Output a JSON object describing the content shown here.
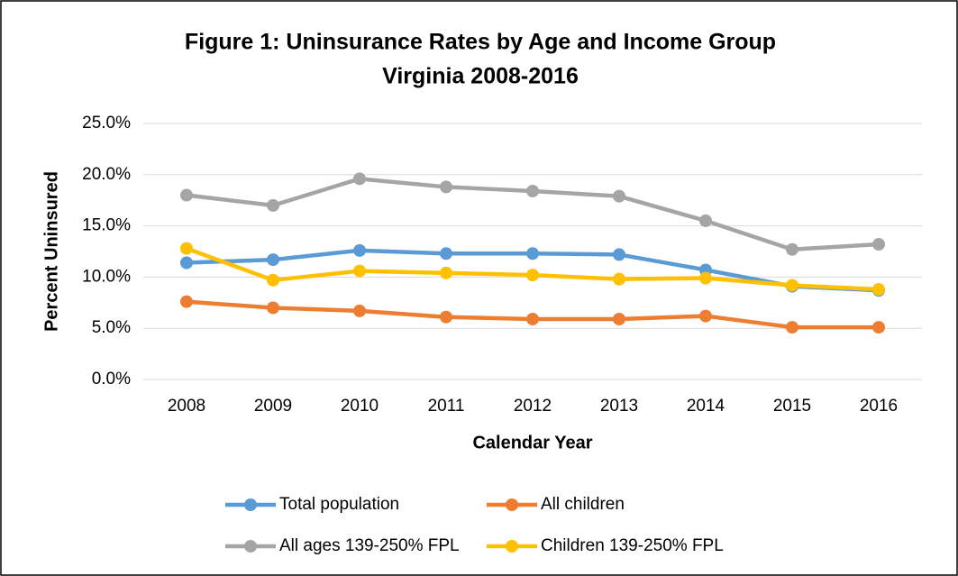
{
  "chart_data": {
    "type": "line",
    "title": [
      "Figure 1:  Uninsurance Rates by Age and Income Group",
      "Virginia 2008-2016"
    ],
    "x_label": "Calendar Year",
    "y_label": "Percent Uninsured",
    "categories": [
      "2008",
      "2009",
      "2010",
      "2011",
      "2012",
      "2013",
      "2014",
      "2015",
      "2016"
    ],
    "series": [
      {
        "name": "Total population",
        "color": "#5b9bd5",
        "values": [
          11.4,
          11.7,
          12.6,
          12.3,
          12.3,
          12.2,
          10.7,
          9.1,
          8.7
        ]
      },
      {
        "name": "All children",
        "color": "#ed7d31",
        "values": [
          7.6,
          7.0,
          6.7,
          6.1,
          5.9,
          5.9,
          6.2,
          5.1,
          5.1
        ]
      },
      {
        "name": "All ages 139-250% FPL",
        "color": "#a5a5a5",
        "values": [
          18.0,
          17.0,
          19.6,
          18.8,
          18.4,
          17.9,
          15.5,
          12.7,
          13.2
        ]
      },
      {
        "name": "Children 139-250% FPL",
        "color": "#ffc000",
        "values": [
          12.8,
          9.7,
          10.6,
          10.4,
          10.2,
          9.8,
          9.9,
          9.2,
          8.8
        ]
      }
    ],
    "ylim": [
      0,
      25
    ],
    "yticks": [
      {
        "value": 0,
        "label": "0.0%"
      },
      {
        "value": 5,
        "label": "5.0%"
      },
      {
        "value": 10,
        "label": "10.0%"
      },
      {
        "value": 15,
        "label": "15.0%"
      },
      {
        "value": 20,
        "label": "20.0%"
      },
      {
        "value": 25,
        "label": "25.0%"
      }
    ],
    "grid": true,
    "legend": "bottom"
  }
}
